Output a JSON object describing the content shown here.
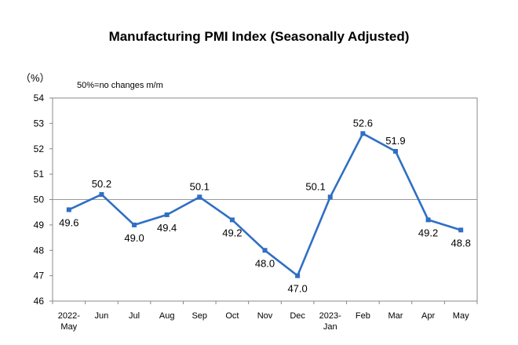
{
  "chart_data": {
    "type": "line",
    "title": "Manufacturing PMI Index (Seasonally Adjusted)",
    "unit_label": "（%）",
    "annotation": "50%=no changes m/m",
    "categories": [
      "2022-May",
      "Jun",
      "Jul",
      "Aug",
      "Sep",
      "Oct",
      "Nov",
      "Dec",
      "2023-Jan",
      "Feb",
      "Mar",
      "Apr",
      "May"
    ],
    "category_lines": [
      [
        "2022-",
        "May"
      ],
      [
        "Jun"
      ],
      [
        "Jul"
      ],
      [
        "Aug"
      ],
      [
        "Sep"
      ],
      [
        "Oct"
      ],
      [
        "Nov"
      ],
      [
        "Dec"
      ],
      [
        "2023-",
        "Jan"
      ],
      [
        "Feb"
      ],
      [
        "Mar"
      ],
      [
        "Apr"
      ],
      [
        "May"
      ]
    ],
    "values": [
      49.6,
      50.2,
      49.0,
      49.4,
      50.1,
      49.2,
      48.0,
      47.0,
      50.1,
      52.6,
      51.9,
      49.2,
      48.8
    ],
    "data_labels": [
      "49.6",
      "50.2",
      "49.0",
      "49.4",
      "50.1",
      "49.2",
      "48.0",
      "47.0",
      "50.1",
      "52.6",
      "51.9",
      "49.2",
      "48.8"
    ],
    "label_position": [
      "below",
      "above",
      "below",
      "below",
      "above",
      "below",
      "below",
      "below",
      "above-left",
      "above",
      "above",
      "below",
      "below"
    ],
    "ylim": [
      46,
      54
    ],
    "yticks": [
      46,
      47,
      48,
      49,
      50,
      51,
      52,
      53,
      54
    ],
    "reference_line": 50,
    "grid": false,
    "line_color": "#2F6FC4",
    "marker_color": "#2F6FC4",
    "reference_color": "#999999"
  }
}
